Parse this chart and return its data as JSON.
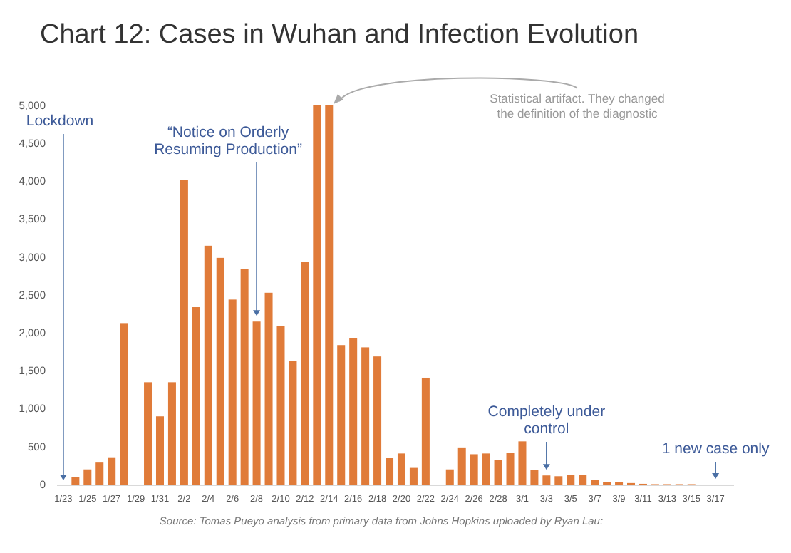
{
  "chart_data": {
    "type": "bar",
    "title": "Chart 12: Cases in Wuhan and Infection Evolution",
    "categories": [
      "1/23",
      null,
      "1/25",
      null,
      "1/27",
      null,
      "1/29",
      null,
      "1/31",
      null,
      "2/2",
      null,
      "2/4",
      null,
      "2/6",
      null,
      "2/8",
      null,
      "2/10",
      null,
      "2/12",
      null,
      "2/14",
      null,
      "2/16",
      null,
      "2/18",
      null,
      "2/20",
      null,
      "2/22",
      null,
      "2/24",
      null,
      "2/26",
      null,
      "2/28",
      null,
      "3/1",
      null,
      "3/3",
      null,
      "3/5",
      null,
      "3/7",
      null,
      "3/9",
      null,
      "3/11",
      null,
      "3/13",
      null,
      "3/15",
      null,
      "3/17",
      null
    ],
    "values": [
      null,
      100,
      200,
      290,
      360,
      2130,
      null,
      1350,
      900,
      1350,
      4020,
      2340,
      3150,
      2990,
      2440,
      2840,
      2150,
      2530,
      2090,
      1630,
      2940,
      5000,
      5000,
      1840,
      1930,
      1810,
      1690,
      350,
      410,
      220,
      1410,
      null,
      200,
      490,
      400,
      410,
      320,
      420,
      570,
      190,
      120,
      110,
      130,
      130,
      60,
      30,
      30,
      20,
      10,
      5,
      5,
      5,
      5,
      0,
      0,
      0
    ],
    "color": "#e07b39",
    "ylim": [
      0,
      5000
    ],
    "yticks": [
      {
        "value": 0,
        "label": "0"
      },
      {
        "value": 500,
        "label": "500"
      },
      {
        "value": 1000,
        "label": "1,000"
      },
      {
        "value": 1500,
        "label": "1,500"
      },
      {
        "value": 2000,
        "label": "2,000"
      },
      {
        "value": 2500,
        "label": "2,500"
      },
      {
        "value": 3000,
        "label": "3,000"
      },
      {
        "value": 3500,
        "label": "3,500"
      },
      {
        "value": 4000,
        "label": "4,000"
      },
      {
        "value": 4500,
        "label": "4,500"
      },
      {
        "value": 5000,
        "label": "5,000"
      }
    ],
    "grid": false,
    "annotations": [
      "Lockdown",
      {
        "text": "“Notice on Orderly\nResuming Production”",
        "x": "2/8",
        "y": 2150
      },
      "Statistical artifact. They changed\nthe definition of the diagnostic",
      {
        "text": "Completely under\ncontrol",
        "x": "3/3",
        "y": 120
      },
      {
        "text": "1 new case only",
        "x": "3/17",
        "y": 0
      },
      "Source: Tomas Pueyo analysis from primary data from Johns Hopkins uploaded by Ryan Lau:"
    ]
  }
}
